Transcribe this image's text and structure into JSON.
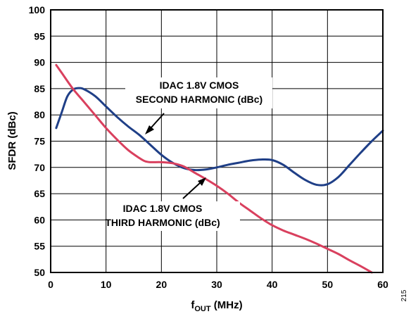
{
  "chart_data": {
    "type": "line",
    "xlabel": {
      "main": "f",
      "sub": "OUT",
      "unit": " (MHz)"
    },
    "ylabel": "SFDR (dBc)",
    "xlim": [
      0,
      60
    ],
    "ylim": [
      50,
      100
    ],
    "grid": true,
    "x_ticks": [
      0,
      10,
      20,
      30,
      40,
      50,
      60
    ],
    "y_ticks": [
      50,
      55,
      60,
      65,
      70,
      75,
      80,
      85,
      90,
      95,
      100
    ],
    "series": [
      {
        "name": "IDAC 1.8V CMOS SECOND HARMONIC (dBc)",
        "color": "#1f3f87",
        "x": [
          1,
          2,
          3,
          4,
          5,
          6,
          8,
          10,
          12,
          14,
          16,
          18,
          20,
          22,
          24,
          26,
          28,
          30,
          32,
          34,
          36,
          38,
          40,
          42,
          44,
          46,
          48,
          50,
          52,
          54,
          56,
          58,
          60
        ],
        "y": [
          77.5,
          80.5,
          83.5,
          84.8,
          85.1,
          84.9,
          83.6,
          81.6,
          79.6,
          77.8,
          76.2,
          74.3,
          72.4,
          70.9,
          69.9,
          69.5,
          69.6,
          70.0,
          70.5,
          70.9,
          71.3,
          71.5,
          71.4,
          70.5,
          69.0,
          67.6,
          66.7,
          66.8,
          68.2,
          70.5,
          72.8,
          75.0,
          77.0
        ]
      },
      {
        "name": "IDAC 1.8V CMOS THIRD HARMONIC (dBc)",
        "color": "#d9405e",
        "x": [
          1,
          2,
          4,
          6,
          8,
          10,
          12,
          14,
          16,
          17,
          18,
          20,
          22,
          24,
          26,
          28,
          30,
          32,
          34,
          36,
          38,
          40,
          42,
          44,
          46,
          48,
          50,
          52,
          54,
          56,
          58
        ],
        "y": [
          89.5,
          88.0,
          85.0,
          82.5,
          80.0,
          77.5,
          75.3,
          73.3,
          71.8,
          71.2,
          71.0,
          71.0,
          70.8,
          70.2,
          69.0,
          67.8,
          66.5,
          65.0,
          63.3,
          61.8,
          60.3,
          59.0,
          58.0,
          57.2,
          56.4,
          55.5,
          54.5,
          53.5,
          52.3,
          51.2,
          50.0
        ]
      }
    ],
    "annotations": {
      "second": {
        "line1": "IDAC 1.8V CMOS",
        "line2": "SECOND HARMONIC (dBc)"
      },
      "third": {
        "line1": "IDAC 1.8V CMOS",
        "line2": "THIRD HARMONIC (dBc)"
      }
    },
    "side_note": "215"
  }
}
